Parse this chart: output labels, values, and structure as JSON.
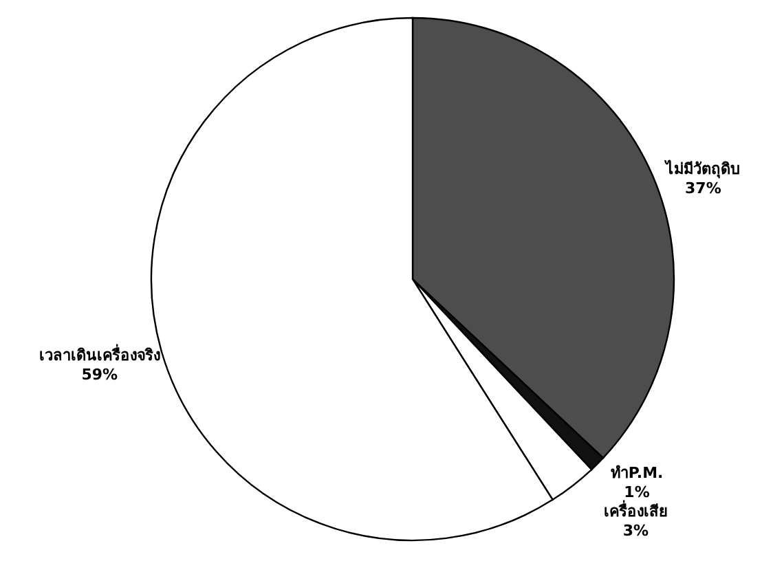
{
  "chart_data": {
    "type": "pie",
    "categories": [
      "ไม่มีวัตถุดิบ",
      "ทำP.M.",
      "เครื่องเสีย",
      "เวลาเดินเครื่องจริง"
    ],
    "values": [
      37,
      1,
      3,
      59
    ],
    "value_labels": [
      "37%",
      "1%",
      "3%",
      "59%"
    ],
    "colors": [
      "#4d4d4d",
      "#111111",
      "#ffffff",
      "#ffffff"
    ]
  }
}
